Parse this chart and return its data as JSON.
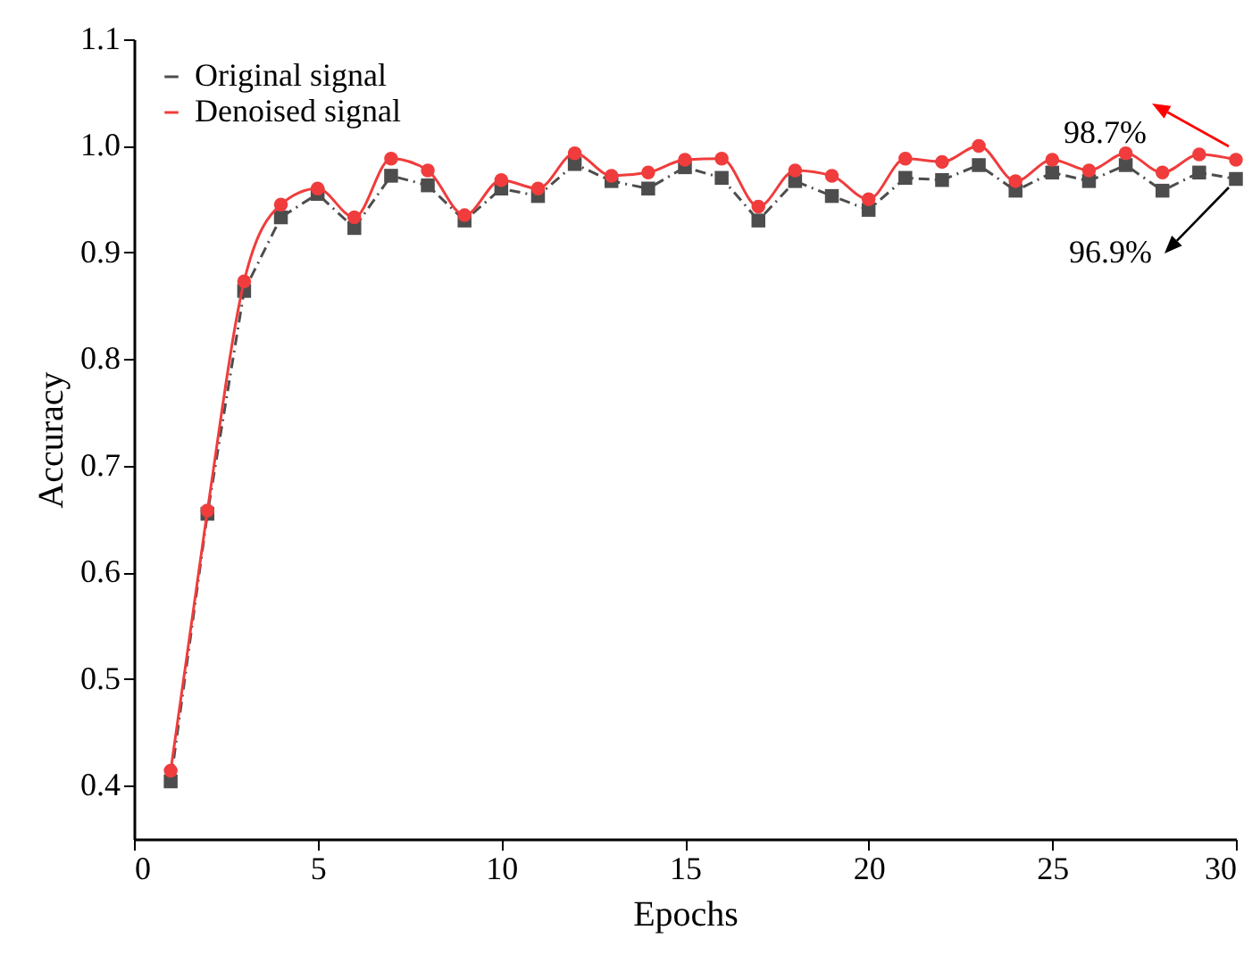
{
  "chart_data": {
    "type": "line",
    "xlabel": "Epochs",
    "ylabel": "Accuracy",
    "x": [
      1,
      2,
      3,
      4,
      5,
      6,
      7,
      8,
      9,
      10,
      11,
      12,
      13,
      14,
      15,
      16,
      17,
      18,
      19,
      20,
      21,
      22,
      23,
      24,
      25,
      26,
      27,
      28,
      29,
      30
    ],
    "series": [
      {
        "name": "Original signal",
        "color": "#4d4d4d",
        "marker": "square",
        "line_style": "dashed",
        "values": [
          0.404,
          0.655,
          0.864,
          0.933,
          0.955,
          0.923,
          0.972,
          0.963,
          0.93,
          0.96,
          0.953,
          0.983,
          0.967,
          0.96,
          0.98,
          0.97,
          0.93,
          0.967,
          0.953,
          0.94,
          0.97,
          0.968,
          0.982,
          0.958,
          0.975,
          0.967,
          0.982,
          0.958,
          0.975,
          0.969
        ]
      },
      {
        "name": "Denoised signal",
        "color": "#f03c3c",
        "marker": "circle",
        "line_style": "solid",
        "values": [
          0.414,
          0.658,
          0.873,
          0.945,
          0.96,
          0.933,
          0.988,
          0.977,
          0.935,
          0.968,
          0.96,
          0.993,
          0.972,
          0.975,
          0.987,
          0.988,
          0.943,
          0.977,
          0.972,
          0.95,
          0.988,
          0.985,
          1.0,
          0.967,
          0.987,
          0.977,
          0.993,
          0.975,
          0.992,
          0.987
        ]
      }
    ],
    "annotations": [
      "98.7%",
      "96.9%"
    ],
    "xlim": [
      0,
      30
    ],
    "xticks": [
      0,
      5,
      10,
      15,
      20,
      25,
      30
    ],
    "ylim": [
      0.35,
      1.1
    ],
    "yticks": [
      0.4,
      0.5,
      0.6,
      0.7,
      0.8,
      0.9,
      {
        "value": 1.0,
        "label": "1.0"
      },
      1.1
    ],
    "grid": false,
    "legend": "top left"
  }
}
